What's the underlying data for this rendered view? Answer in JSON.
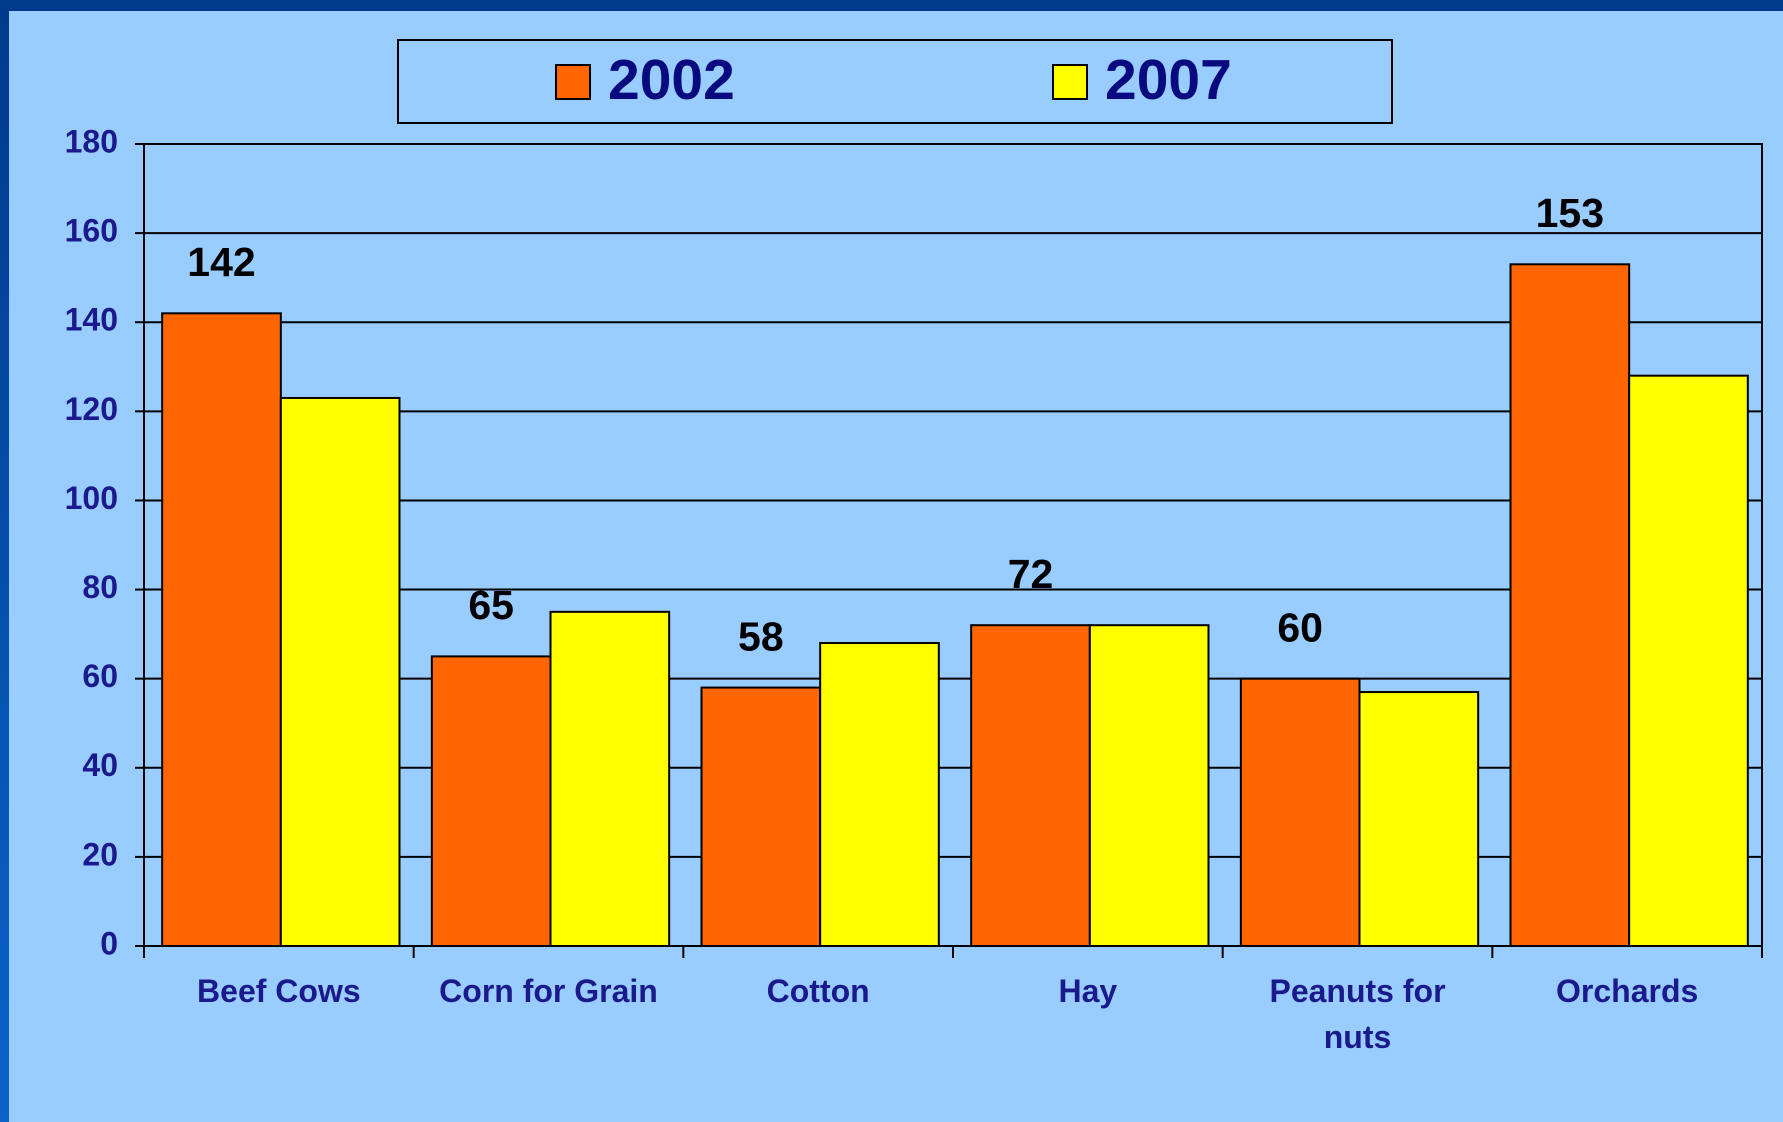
{
  "chart_data": {
    "type": "bar",
    "categories": [
      "Beef Cows",
      "Corn for Grain",
      "Cotton",
      "Hay",
      "Peanuts for nuts",
      "Orchards"
    ],
    "series": [
      {
        "name": "2002",
        "color": "#ff6600",
        "values": [
          142,
          65,
          58,
          72,
          60,
          153
        ]
      },
      {
        "name": "2007",
        "color": "#ffff00",
        "values": [
          123,
          75,
          68,
          72,
          57,
          128
        ]
      }
    ],
    "ylim": [
      0,
      180
    ],
    "yticks": [
      0,
      20,
      40,
      60,
      80,
      100,
      120,
      140,
      160,
      180
    ],
    "grid": true,
    "legend": "top"
  }
}
